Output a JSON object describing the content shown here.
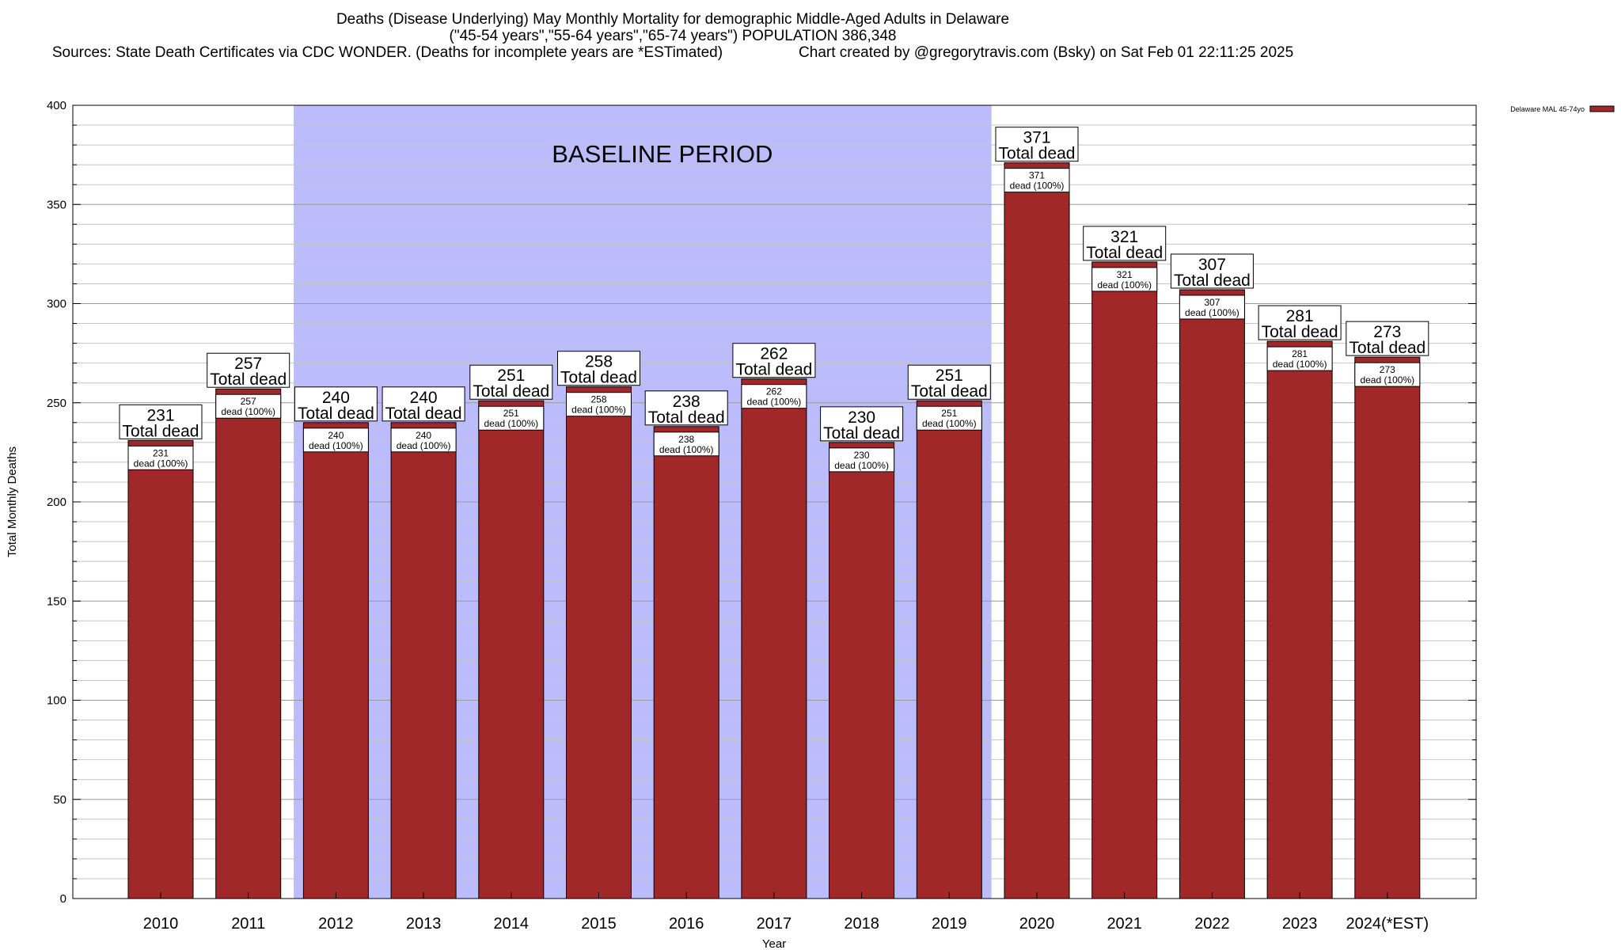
{
  "chart_data": {
    "type": "bar",
    "title": "Deaths (Disease Underlying) May Monthly Mortality for demographic Middle-Aged Adults in Delaware",
    "subtitle": "(\"45-54 years\",\"55-64 years\",\"65-74 years\") POPULATION 386,348",
    "sources": "Sources: State Death Certificates via CDC WONDER. (Deaths for incomplete years are *ESTimated)",
    "credit": "Chart created by @gregorytravis.com (Bsky) on Sat Feb 01 22:11:25 2025",
    "xlabel": "Year",
    "ylabel": "Total Monthly Deaths",
    "ylim": [
      0,
      400
    ],
    "yticks": [
      0,
      50,
      100,
      150,
      200,
      250,
      300,
      350,
      400
    ],
    "categories": [
      "2010",
      "2011",
      "2012",
      "2013",
      "2014",
      "2015",
      "2016",
      "2017",
      "2018",
      "2019",
      "2020",
      "2021",
      "2022",
      "2023",
      "2024(*EST)"
    ],
    "series": [
      {
        "name": "Delaware MAL 45-74yo",
        "color": "#a02828",
        "values": [
          231,
          257,
          240,
          240,
          251,
          258,
          238,
          262,
          230,
          251,
          371,
          321,
          307,
          281,
          273
        ]
      }
    ],
    "total_label": "Total dead",
    "inner_label": "dead (100%)",
    "baseline": {
      "label": "BASELINE PERIOD",
      "start": "2012",
      "end": "2019",
      "color": "#bcbcfc"
    },
    "legend": {
      "label": "Delaware MAL 45-74yo",
      "position": "top-right"
    }
  }
}
